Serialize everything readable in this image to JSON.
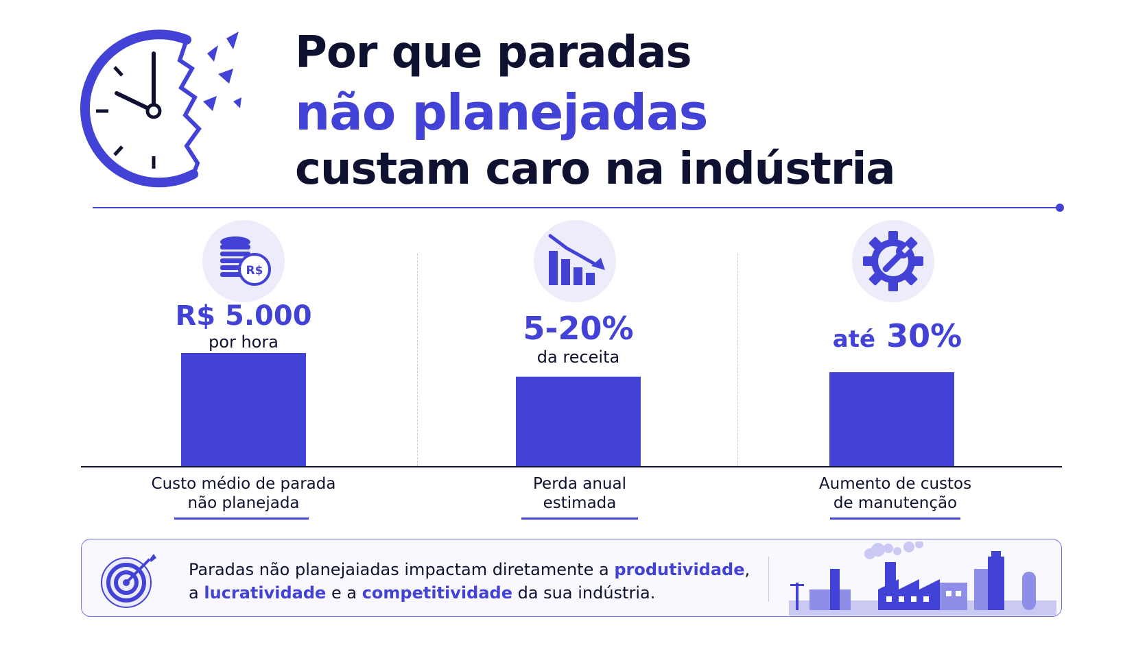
{
  "header": {
    "title_line1": "Por que paradas",
    "title_line2": "não planejadas",
    "title_line3": "custam caro na indústria"
  },
  "icons": {
    "header": "broken-clock-icon",
    "col1": "coins-real-icon",
    "col2": "declining-bar-chart-icon",
    "col3": "gear-wrench-icon",
    "panel_left": "target-arrow-icon",
    "panel_right": "factory-skyline-icon"
  },
  "colors": {
    "accent": "#4242d6",
    "dark": "#0f1130",
    "icon_bg": "#ececfa"
  },
  "chart_data": {
    "type": "bar",
    "categories": [
      "Custo médio de parada não planejada",
      "Perda anual estimada",
      "Aumento de custos de manutenção"
    ],
    "values": [
      5000,
      20,
      30
    ],
    "bar_heights_relative": [
      1.0,
      0.79,
      0.83
    ],
    "items": [
      {
        "value_label": "R$ 5.000",
        "sub_label": "por hora",
        "category_line1": "Custo médio de parada",
        "category_line2": "não planejada"
      },
      {
        "value_label": "5-20%",
        "sub_label": "da receita",
        "category_line1": "Perda anual",
        "category_line2": "estimada"
      },
      {
        "value_prefix": "até",
        "value_label": "30%",
        "sub_label": "",
        "category_line1": "Aumento de custos",
        "category_line2": "de manutenção"
      }
    ],
    "grid": false,
    "legend": "none"
  },
  "panel": {
    "text_1": "Paradas não planejaiadas impactam diretamente a ",
    "highlight_1": "produtividade",
    "text_2": ",",
    "text_3": "a ",
    "highlight_2": "lucratividade",
    "text_4": " e a ",
    "highlight_3": "competitividade",
    "text_5": " da sua indústria."
  }
}
